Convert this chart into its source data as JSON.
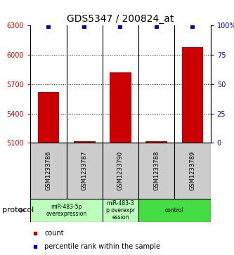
{
  "title": "GDS5347 / 200824_at",
  "samples": [
    "GSM1233786",
    "GSM1233787",
    "GSM1233790",
    "GSM1233788",
    "GSM1233789"
  ],
  "counts": [
    5620,
    5115,
    5820,
    5115,
    6080
  ],
  "percentile_ranks": [
    99,
    99,
    99,
    99,
    99
  ],
  "ymin": 5100,
  "ymax": 6300,
  "yticks": [
    5100,
    5400,
    5700,
    6000,
    6300
  ],
  "right_yticks": [
    0,
    25,
    50,
    75,
    100
  ],
  "bar_color": "#cc0000",
  "dot_color": "#0000cc",
  "protocol_groups": [
    {
      "label": "miR-483-5p\noverexpression",
      "start": 0,
      "end": 2,
      "color": "#bbffbb"
    },
    {
      "label": "miR-483-3\np overexpr\nession",
      "start": 2,
      "end": 3,
      "color": "#bbffbb"
    },
    {
      "label": "control",
      "start": 3,
      "end": 5,
      "color": "#44dd44"
    }
  ],
  "legend_count_label": "count",
  "legend_pct_label": "percentile rank within the sample",
  "protocol_label": "protocol"
}
